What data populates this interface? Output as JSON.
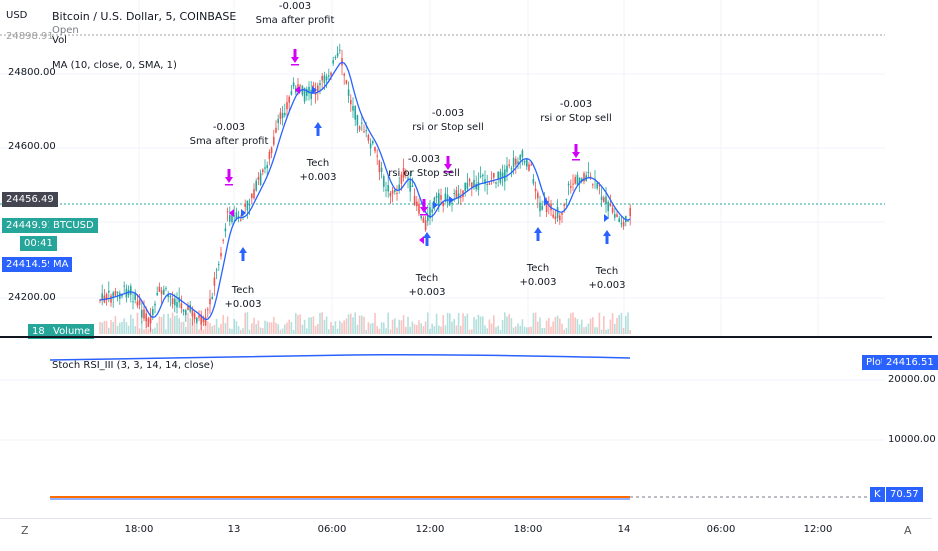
{
  "header": {
    "currency": "USD",
    "title": "Bitcoin / U.S. Dollar, 5, COINBASE",
    "open_label": "Open",
    "vol_label": "Vol",
    "ma_label": "MA (10, close, 0, SMA, 1)"
  },
  "price_axis": {
    "top_cut": "24898.91",
    "labels": [
      "24800.00",
      "24600.00",
      "24200.00"
    ],
    "last_price": "24456.49",
    "btc_price": "24449.91",
    "btc_symbol": "BTCUSD",
    "countdown": "00:41",
    "ma_price": "24414.59",
    "ma_symbol": "MA",
    "volume_value": "18",
    "volume_label": "Volume"
  },
  "annotations": [
    {
      "line1": "-0.003",
      "line2": "Sma after profit"
    },
    {
      "line1": "-0.003",
      "line2": "Sma after profit"
    },
    {
      "line1": "Tech",
      "line2": "+0.003"
    },
    {
      "line1": "-0.003",
      "line2": "rsi or Stop sell"
    },
    {
      "line1": "-0.003",
      "line2": "rsi or Stop sell"
    },
    {
      "line1": "-0.003",
      "line2": "rsi or Stop sell"
    },
    {
      "line1": "Tech",
      "line2": "+0.003"
    },
    {
      "line1": "Tech",
      "line2": "+0.003"
    },
    {
      "line1": "Tech",
      "line2": "+0.003"
    },
    {
      "line1": "Tech",
      "line2": "+0.003"
    }
  ],
  "stoch": {
    "label": "Stoch RSI_III (3, 3, 14, 14, close)",
    "plot_label": "Plot",
    "plot_value": "24416.51",
    "axis_labels": [
      "20000.00",
      "10000.00"
    ],
    "k_label": "K",
    "k_value": "70.57"
  },
  "time_axis": {
    "labels": [
      "18:00",
      "13",
      "06:00",
      "12:00",
      "18:00",
      "14",
      "06:00",
      "12:00"
    ],
    "left_control": "Z",
    "right_control": "A"
  },
  "colors": {
    "up": "#26a69a",
    "down": "#ef5350",
    "ma_line": "#2962ff",
    "buy_arrow": "#2962ff",
    "sell_arrow": "#d500f9",
    "last_price_bg": "#434651",
    "btc_tag": "#26a69a",
    "ma_tag": "#2962ff",
    "stoch_line": "#2962ff",
    "k_tag": "#2962ff",
    "stoch_flat": "#ff6d00"
  },
  "icons": {
    "buy": "arrow-up-icon",
    "sell": "arrow-down-icon",
    "signal_right": "triangle-right-icon",
    "signal_left": "triangle-left-icon"
  }
}
